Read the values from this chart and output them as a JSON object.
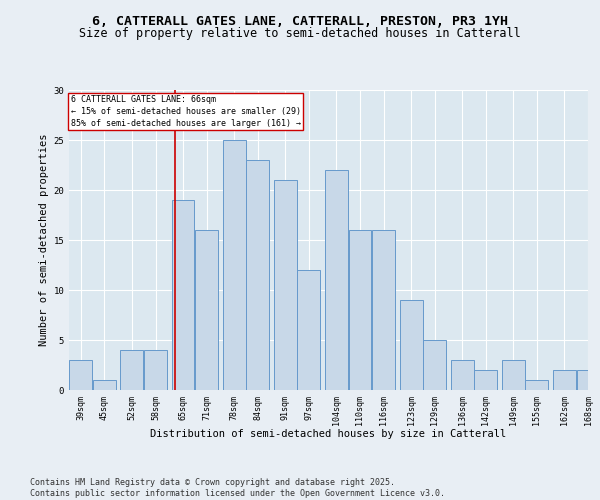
{
  "title_line1": "6, CATTERALL GATES LANE, CATTERALL, PRESTON, PR3 1YH",
  "title_line2": "Size of property relative to semi-detached houses in Catterall",
  "xlabel": "Distribution of semi-detached houses by size in Catterall",
  "ylabel": "Number of semi-detached properties",
  "bins": [
    39,
    45,
    52,
    58,
    65,
    71,
    78,
    84,
    91,
    97,
    104,
    110,
    116,
    123,
    129,
    136,
    142,
    149,
    155,
    162,
    168
  ],
  "heights": [
    3,
    1,
    4,
    4,
    19,
    16,
    25,
    23,
    21,
    12,
    22,
    16,
    16,
    9,
    5,
    3,
    2,
    3,
    1,
    2,
    2
  ],
  "bar_color": "#c8d8e8",
  "bar_edge_color": "#6699cc",
  "property_size": 66,
  "red_line_color": "#cc0000",
  "annotation_text": "6 CATTERALL GATES LANE: 66sqm\n← 15% of semi-detached houses are smaller (29)\n85% of semi-detached houses are larger (161) →",
  "annotation_box_color": "#ffffff",
  "annotation_box_edge": "#cc0000",
  "background_color": "#e8eef4",
  "plot_bg_color": "#dce8f0",
  "footer_text": "Contains HM Land Registry data © Crown copyright and database right 2025.\nContains public sector information licensed under the Open Government Licence v3.0.",
  "ylim": [
    0,
    30
  ],
  "yticks": [
    0,
    5,
    10,
    15,
    20,
    25,
    30
  ],
  "grid_color": "#ffffff",
  "title_fontsize": 9.5,
  "subtitle_fontsize": 8.5,
  "tick_fontsize": 6.0,
  "label_fontsize": 7.5,
  "footer_fontsize": 6.0,
  "annotation_fontsize": 6.0
}
